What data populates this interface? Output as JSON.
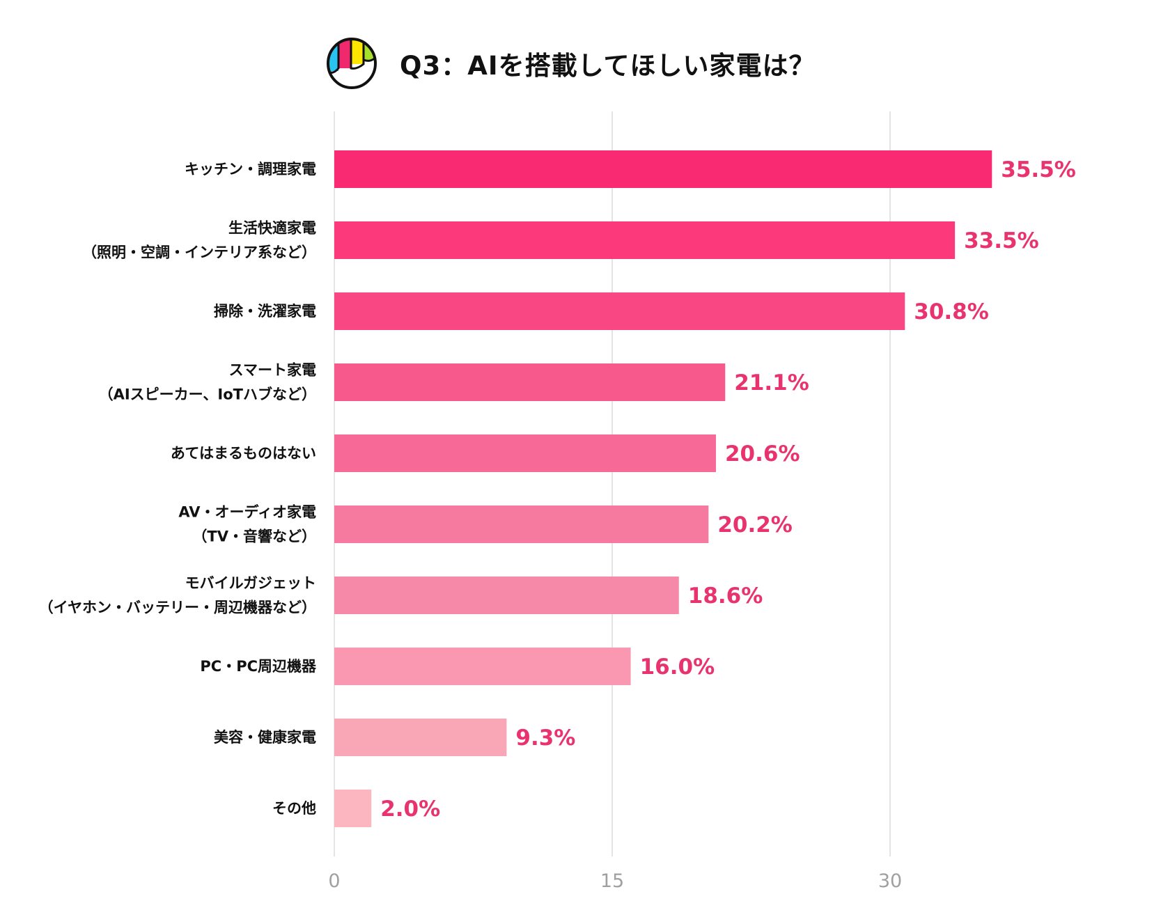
{
  "title": "Q3：AIを搭載してほしい家電は？",
  "logo": {
    "colors": [
      "#29c4ef",
      "#f0286e",
      "#ffe600",
      "#a6e02a"
    ]
  },
  "chart_data": {
    "type": "bar",
    "orientation": "horizontal",
    "title": "Q3：AIを搭載してほしい家電は？",
    "categories": [
      [
        "キッチン・調理家電"
      ],
      [
        "生活快適家電",
        "（照明・空調・インテリア系など）"
      ],
      [
        "掃除・洗濯家電"
      ],
      [
        "スマート家電",
        "（AIスピーカー、IoTハブなど）"
      ],
      [
        "あてはまるものはない"
      ],
      [
        "AV・オーディオ家電",
        "（TV・音響など）"
      ],
      [
        "モバイルガジェット",
        "（イヤホン・バッテリー・周辺機器など）"
      ],
      [
        "PC・PC周辺機器"
      ],
      [
        "美容・健康家電"
      ],
      [
        "その他"
      ]
    ],
    "values": [
      35.5,
      33.5,
      30.8,
      21.1,
      20.6,
      20.2,
      18.6,
      16.0,
      9.3,
      2.0
    ],
    "value_labels": [
      "35.5%",
      "33.5%",
      "30.8%",
      "21.1%",
      "20.6%",
      "20.2%",
      "18.6%",
      "16.0%",
      "9.3%",
      "2.0%"
    ],
    "bar_colors": [
      "#fa2a72",
      "#fb397b",
      "#f94784",
      "#f7598d",
      "#f76996",
      "#f6799f",
      "#f789a8",
      "#f998b0",
      "#f9a7b7",
      "#fbb6c0"
    ],
    "value_label_color": "#e8336f",
    "xticks": [
      "0",
      "15",
      "30"
    ],
    "xtick_values": [
      0,
      15,
      30
    ],
    "xlim": [
      0,
      40
    ],
    "grid": true,
    "xlabel": "",
    "ylabel": ""
  }
}
